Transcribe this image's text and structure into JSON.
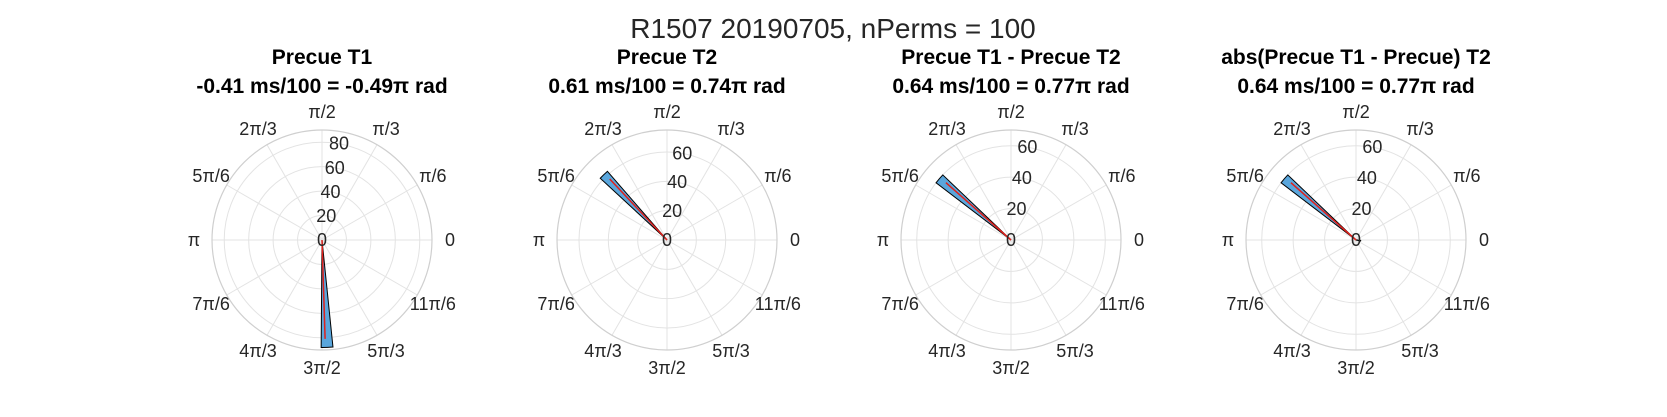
{
  "figure_title": "R1507 20190705, nPerms = 100",
  "colors": {
    "bar_fill": "#5aa6dc",
    "bar_edge": "#000000",
    "mean_line": "#e0201b",
    "grid": "#e3e3e3"
  },
  "theta_labels": [
    "0",
    "π/6",
    "π/3",
    "π/2",
    "2π/3",
    "5π/6",
    "π",
    "7π/6",
    "4π/3",
    "3π/2",
    "5π/3",
    "11π/6"
  ],
  "chart_data": [
    {
      "type": "polar-histogram",
      "title_line1": "Precue T1",
      "title_line2": "-0.41 ms/100 = -0.49π rad",
      "rlim": [
        0,
        90
      ],
      "r_ticks": [
        "0",
        "20",
        "40",
        "60",
        "80"
      ],
      "r_tick_values": [
        0,
        20,
        40,
        60,
        80
      ],
      "mean_angle_pi": -0.49,
      "bars": [
        {
          "angle_center_pi": 1.515,
          "width_pi": 0.035,
          "count": 88
        }
      ]
    },
    {
      "type": "polar-histogram",
      "title_line1": "Precue T2",
      "title_line2": "0.61 ms/100 = 0.74π rad",
      "rlim": [
        0,
        75
      ],
      "r_ticks": [
        "0",
        "20",
        "40",
        "60"
      ],
      "r_tick_values": [
        0,
        20,
        40,
        60
      ],
      "mean_angle_pi": 0.74,
      "bars": [
        {
          "angle_center_pi": 0.745,
          "width_pi": 0.035,
          "count": 62
        }
      ]
    },
    {
      "type": "polar-histogram",
      "title_line1": "Precue T1 - Precue T2",
      "title_line2": "0.64 ms/100 = 0.77π rad",
      "rlim": [
        0,
        70
      ],
      "r_ticks": [
        "0",
        "20",
        "40",
        "60"
      ],
      "r_tick_values": [
        0,
        20,
        40,
        60
      ],
      "mean_angle_pi": 0.77,
      "bars": [
        {
          "angle_center_pi": 0.775,
          "width_pi": 0.035,
          "count": 60
        }
      ]
    },
    {
      "type": "polar-histogram",
      "title_line1": "abs(Precue T1 - Precue) T2",
      "title_line2": "0.64 ms/100 = 0.77π rad",
      "rlim": [
        0,
        70
      ],
      "r_ticks": [
        "0",
        "20",
        "40",
        "60"
      ],
      "r_tick_values": [
        0,
        20,
        40,
        60
      ],
      "mean_angle_pi": 0.77,
      "bars": [
        {
          "angle_center_pi": 0.775,
          "width_pi": 0.035,
          "count": 60
        },
        {
          "angle_center_pi": 1.95,
          "width_pi": 0.035,
          "count": 3
        }
      ]
    }
  ]
}
